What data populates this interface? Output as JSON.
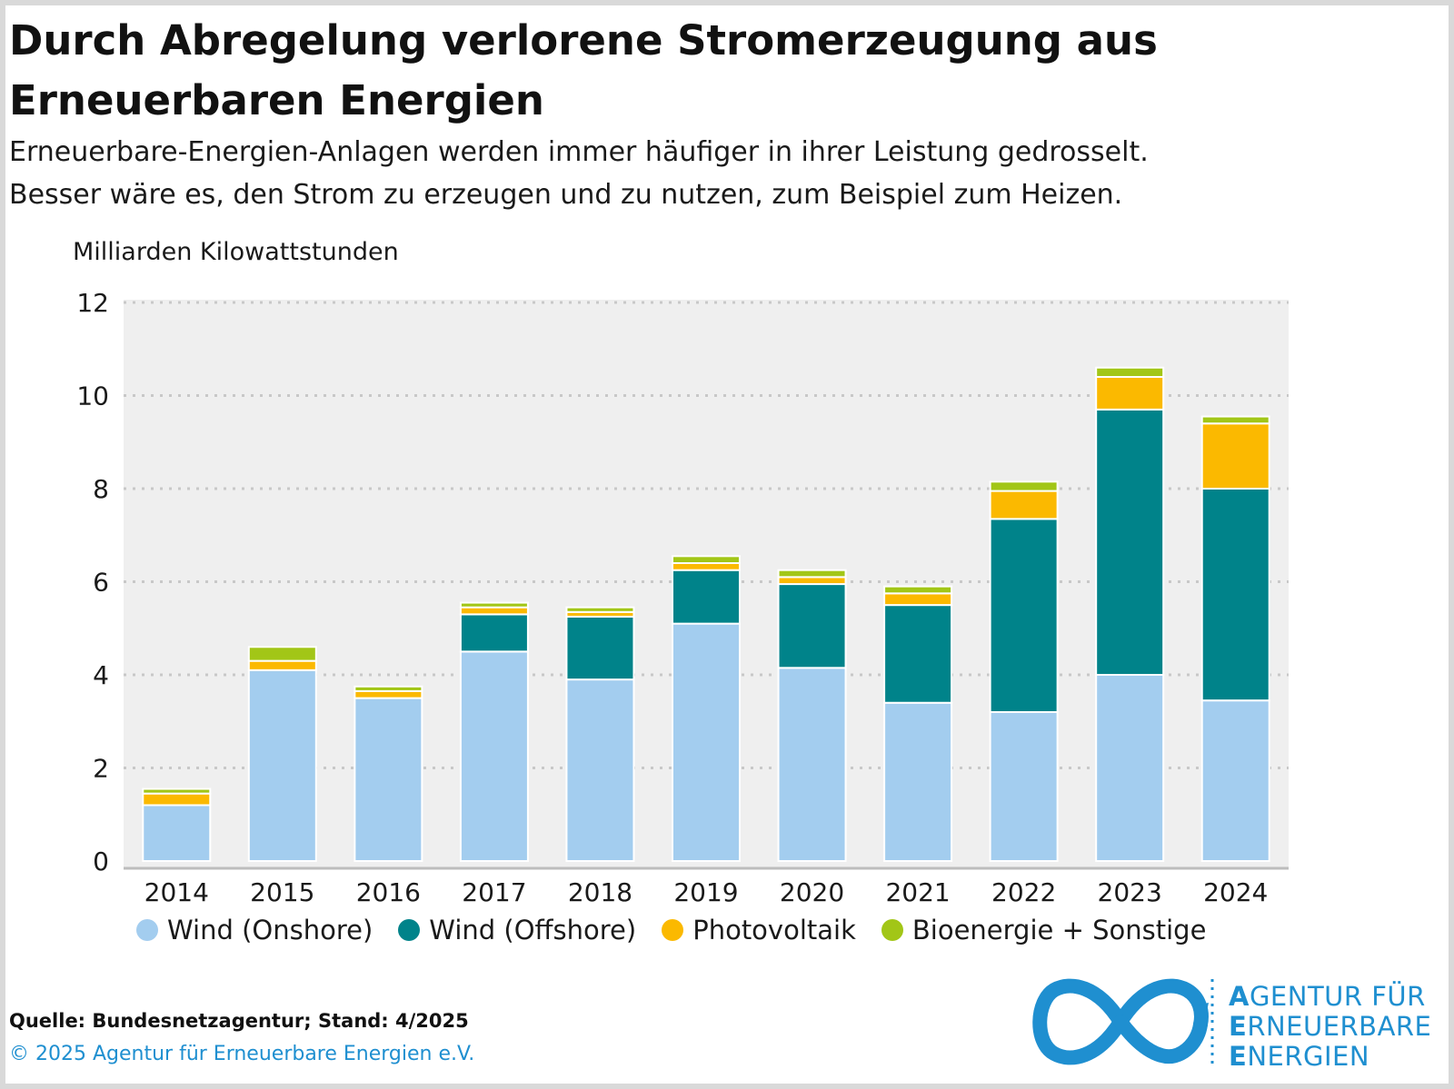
{
  "header": {
    "title": "Durch Abregelung verlorene Stromerzeugung aus Erneuerbaren Energien",
    "subtitle_line1": "Erneuerbare-Energien-Anlagen werden immer häufiger in ihrer Leistung gedrosselt.",
    "subtitle_line2": "Besser wäre es, den Strom zu erzeugen und zu nutzen, zum Beispiel zum Heizen."
  },
  "chart_data": {
    "type": "bar",
    "stacked": true,
    "ylabel": "Milliarden Kilowattstunden",
    "ylim": [
      0,
      12
    ],
    "yticks": [
      "0",
      "2",
      "4",
      "6",
      "8",
      "10",
      "12"
    ],
    "grid": true,
    "legend_position": "bottom",
    "categories": [
      "2014",
      "2015",
      "2016",
      "2017",
      "2018",
      "2019",
      "2020",
      "2021",
      "2022",
      "2023",
      "2024"
    ],
    "series": [
      {
        "name": "Wind (Onshore)",
        "color": "#a3cdef",
        "values": [
          1.2,
          4.1,
          3.5,
          4.5,
          3.9,
          5.1,
          4.15,
          3.4,
          3.2,
          4.0,
          3.45
        ]
      },
      {
        "name": "Wind (Offshore)",
        "color": "#00838a",
        "values": [
          0.0,
          0.0,
          0.0,
          0.8,
          1.35,
          1.15,
          1.8,
          2.1,
          4.15,
          5.7,
          4.55
        ]
      },
      {
        "name": "Photovoltaik",
        "color": "#fbb900",
        "values": [
          0.25,
          0.2,
          0.15,
          0.15,
          0.1,
          0.15,
          0.15,
          0.25,
          0.6,
          0.7,
          1.4
        ]
      },
      {
        "name": "Bioenergie + Sonstige",
        "color": "#a2c617",
        "values": [
          0.1,
          0.3,
          0.1,
          0.1,
          0.1,
          0.15,
          0.15,
          0.15,
          0.2,
          0.2,
          0.15
        ]
      }
    ]
  },
  "footer": {
    "source": "Quelle: Bundesnetzagentur; Stand: 4/2025",
    "copyright": "© 2025 Agentur für Erneuerbare Energien e.V."
  },
  "logo": {
    "line1_initial": "A",
    "line1_rest": "GENTUR FÜR",
    "line2_initial": "E",
    "line2_rest": "RNEUERBARE",
    "line3_initial": "E",
    "line3_rest": "NERGIEN",
    "color": "#1f8fd0"
  }
}
